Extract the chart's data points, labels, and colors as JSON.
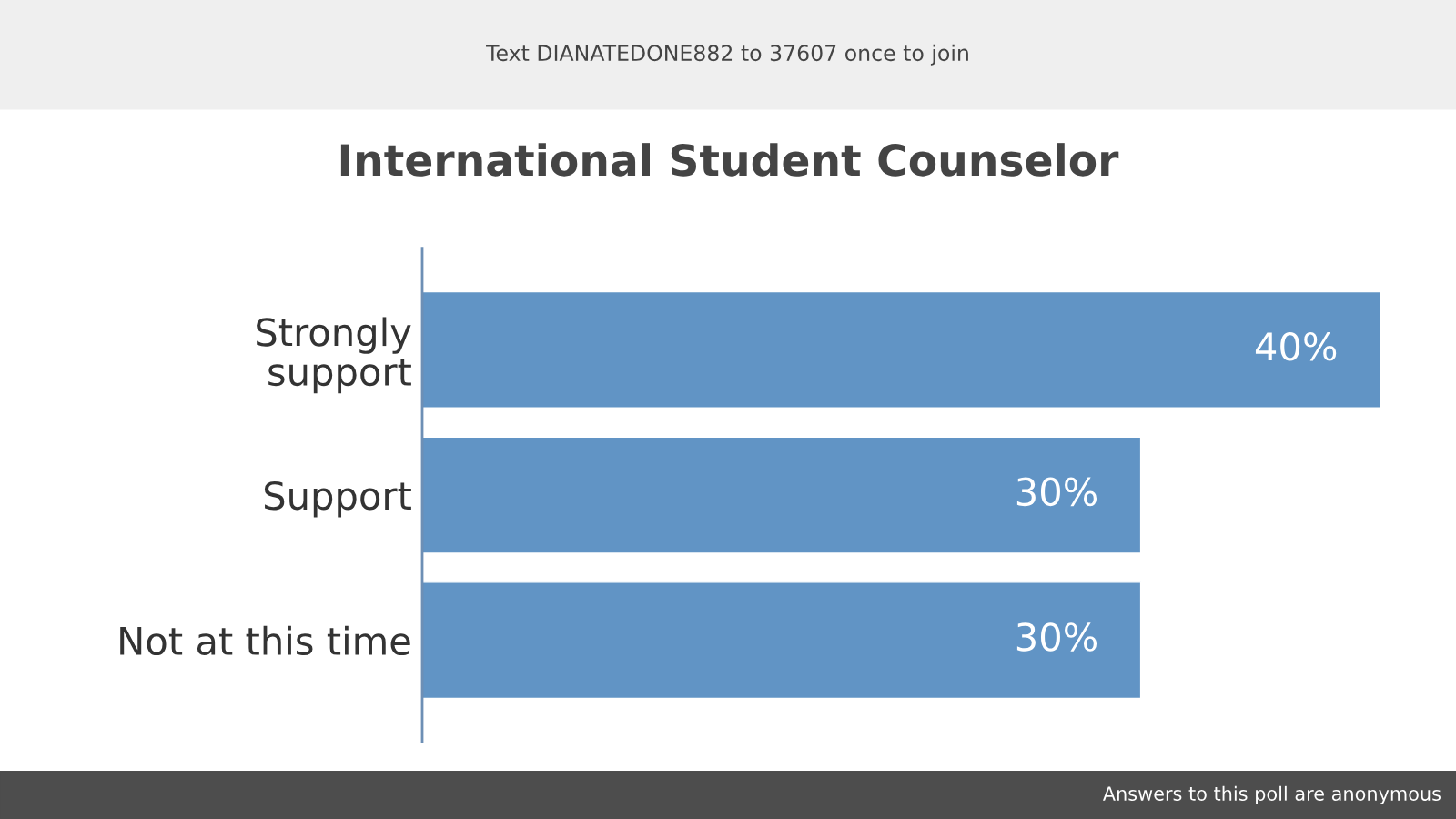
{
  "chart_data": {
    "type": "bar",
    "orientation": "horizontal",
    "title": "International Student Counselor",
    "categories": [
      "Strongly support",
      "Support",
      "Not at this time"
    ],
    "values": [
      40,
      30,
      30
    ],
    "value_labels": [
      "40%",
      "30%",
      "30%"
    ],
    "color": "#6194c5",
    "grid": false,
    "legend": false,
    "annotations": [
      "Text DIANATEDONE882 to 37607 once to join",
      "Answers to this poll are anonymous"
    ]
  }
}
